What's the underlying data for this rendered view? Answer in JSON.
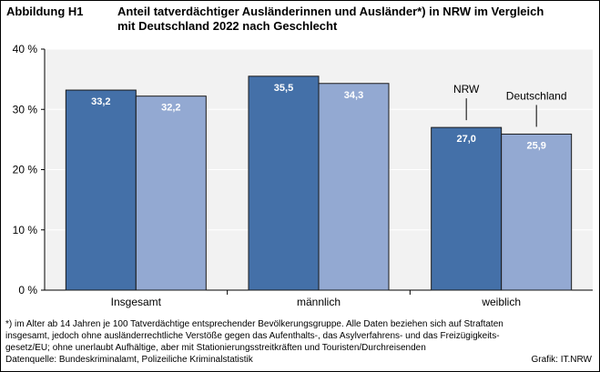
{
  "title": {
    "label": "Abbildung H1",
    "line1": "Anteil tatverdächtiger Ausländerinnen und Ausländer*) in NRW im Vergleich",
    "line2": "mit Deutschland 2022 nach Geschlecht"
  },
  "chart_data": {
    "type": "bar",
    "categories": [
      "Insgesamt",
      "männlich",
      "weiblich"
    ],
    "series": [
      {
        "name": "NRW",
        "values": [
          33.2,
          35.5,
          27.0
        ],
        "labels": [
          "33,2",
          "35,5",
          "27,0"
        ],
        "color": "#4470a8"
      },
      {
        "name": "Deutschland",
        "values": [
          32.2,
          34.3,
          25.9
        ],
        "labels": [
          "32,2",
          "34,3",
          "25,9"
        ],
        "color": "#93a9d2"
      }
    ],
    "ylim": [
      0,
      40
    ],
    "yticks": [
      {
        "value": 0,
        "label": "0 %"
      },
      {
        "value": 10,
        "label": "10 %"
      },
      {
        "value": 20,
        "label": "20 %"
      },
      {
        "value": 30,
        "label": "30 %"
      },
      {
        "value": 40,
        "label": "40 %"
      }
    ],
    "grid": true,
    "legend": "annotations above weiblich bars",
    "plot_background": "#f2f2f2",
    "gridline_color": "#ffffff"
  },
  "footnote": [
    "*) im Alter ab 14 Jahren je 100 Tatverdächtige entsprechender Bevölkerungsgruppe.  Alle Daten beziehen sich auf Straftaten",
    "insgesamt, jedoch ohne ausländerrechtliche Verstöße gegen das Aufenthalts-, das Asylverfahrens- und das Freizügigkeits-",
    "gesetz/EU;  ohne unerlaubt Aufhältige, aber mit Stationierungsstreitkräften  und Touristen/Durchreisenden"
  ],
  "source": "Datenquelle:  Bundeskriminalamt,  Polizeiliche  Kriminalstatistik",
  "credit": "Grafik: IT.NRW"
}
